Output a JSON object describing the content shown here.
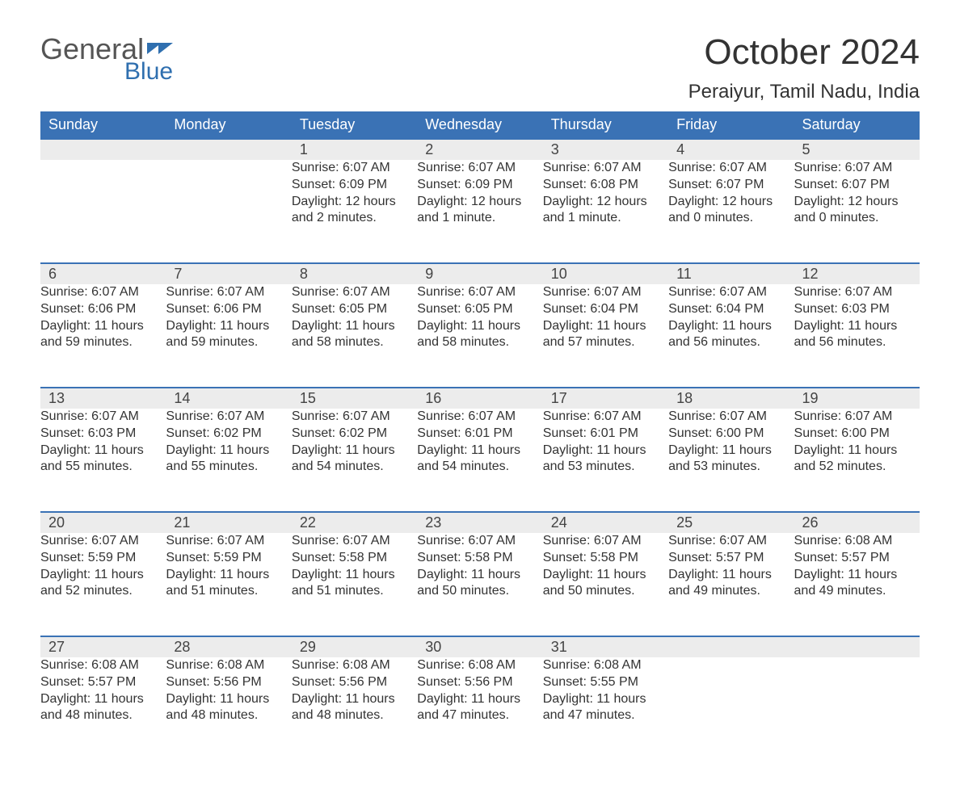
{
  "brand": {
    "part1": "General",
    "part2": "Blue"
  },
  "title": "October 2024",
  "location": "Peraiyur, Tamil Nadu, India",
  "columns": [
    "Sunday",
    "Monday",
    "Tuesday",
    "Wednesday",
    "Thursday",
    "Friday",
    "Saturday"
  ],
  "colors": {
    "header_bg": "#3a72b5",
    "header_text": "#ffffff",
    "daynum_bg": "#ececec",
    "daynum_border": "#3a72b5",
    "body_text": "#333333",
    "brand_gray": "#555555",
    "brand_blue": "#2f6faf",
    "background": "#ffffff"
  },
  "typography": {
    "month_title_fontsize": 44,
    "location_fontsize": 24,
    "header_fontsize": 18,
    "daynum_fontsize": 18,
    "body_fontsize": 16
  },
  "layout": {
    "type": "calendar-table",
    "cols": 7,
    "rows": 5,
    "first_day_col_index": 2
  },
  "days": [
    {
      "n": "1",
      "sunrise": "6:07 AM",
      "sunset": "6:09 PM",
      "daylight": "12 hours and 2 minutes."
    },
    {
      "n": "2",
      "sunrise": "6:07 AM",
      "sunset": "6:09 PM",
      "daylight": "12 hours and 1 minute."
    },
    {
      "n": "3",
      "sunrise": "6:07 AM",
      "sunset": "6:08 PM",
      "daylight": "12 hours and 1 minute."
    },
    {
      "n": "4",
      "sunrise": "6:07 AM",
      "sunset": "6:07 PM",
      "daylight": "12 hours and 0 minutes."
    },
    {
      "n": "5",
      "sunrise": "6:07 AM",
      "sunset": "6:07 PM",
      "daylight": "12 hours and 0 minutes."
    },
    {
      "n": "6",
      "sunrise": "6:07 AM",
      "sunset": "6:06 PM",
      "daylight": "11 hours and 59 minutes."
    },
    {
      "n": "7",
      "sunrise": "6:07 AM",
      "sunset": "6:06 PM",
      "daylight": "11 hours and 59 minutes."
    },
    {
      "n": "8",
      "sunrise": "6:07 AM",
      "sunset": "6:05 PM",
      "daylight": "11 hours and 58 minutes."
    },
    {
      "n": "9",
      "sunrise": "6:07 AM",
      "sunset": "6:05 PM",
      "daylight": "11 hours and 58 minutes."
    },
    {
      "n": "10",
      "sunrise": "6:07 AM",
      "sunset": "6:04 PM",
      "daylight": "11 hours and 57 minutes."
    },
    {
      "n": "11",
      "sunrise": "6:07 AM",
      "sunset": "6:04 PM",
      "daylight": "11 hours and 56 minutes."
    },
    {
      "n": "12",
      "sunrise": "6:07 AM",
      "sunset": "6:03 PM",
      "daylight": "11 hours and 56 minutes."
    },
    {
      "n": "13",
      "sunrise": "6:07 AM",
      "sunset": "6:03 PM",
      "daylight": "11 hours and 55 minutes."
    },
    {
      "n": "14",
      "sunrise": "6:07 AM",
      "sunset": "6:02 PM",
      "daylight": "11 hours and 55 minutes."
    },
    {
      "n": "15",
      "sunrise": "6:07 AM",
      "sunset": "6:02 PM",
      "daylight": "11 hours and 54 minutes."
    },
    {
      "n": "16",
      "sunrise": "6:07 AM",
      "sunset": "6:01 PM",
      "daylight": "11 hours and 54 minutes."
    },
    {
      "n": "17",
      "sunrise": "6:07 AM",
      "sunset": "6:01 PM",
      "daylight": "11 hours and 53 minutes."
    },
    {
      "n": "18",
      "sunrise": "6:07 AM",
      "sunset": "6:00 PM",
      "daylight": "11 hours and 53 minutes."
    },
    {
      "n": "19",
      "sunrise": "6:07 AM",
      "sunset": "6:00 PM",
      "daylight": "11 hours and 52 minutes."
    },
    {
      "n": "20",
      "sunrise": "6:07 AM",
      "sunset": "5:59 PM",
      "daylight": "11 hours and 52 minutes."
    },
    {
      "n": "21",
      "sunrise": "6:07 AM",
      "sunset": "5:59 PM",
      "daylight": "11 hours and 51 minutes."
    },
    {
      "n": "22",
      "sunrise": "6:07 AM",
      "sunset": "5:58 PM",
      "daylight": "11 hours and 51 minutes."
    },
    {
      "n": "23",
      "sunrise": "6:07 AM",
      "sunset": "5:58 PM",
      "daylight": "11 hours and 50 minutes."
    },
    {
      "n": "24",
      "sunrise": "6:07 AM",
      "sunset": "5:58 PM",
      "daylight": "11 hours and 50 minutes."
    },
    {
      "n": "25",
      "sunrise": "6:07 AM",
      "sunset": "5:57 PM",
      "daylight": "11 hours and 49 minutes."
    },
    {
      "n": "26",
      "sunrise": "6:08 AM",
      "sunset": "5:57 PM",
      "daylight": "11 hours and 49 minutes."
    },
    {
      "n": "27",
      "sunrise": "6:08 AM",
      "sunset": "5:57 PM",
      "daylight": "11 hours and 48 minutes."
    },
    {
      "n": "28",
      "sunrise": "6:08 AM",
      "sunset": "5:56 PM",
      "daylight": "11 hours and 48 minutes."
    },
    {
      "n": "29",
      "sunrise": "6:08 AM",
      "sunset": "5:56 PM",
      "daylight": "11 hours and 48 minutes."
    },
    {
      "n": "30",
      "sunrise": "6:08 AM",
      "sunset": "5:56 PM",
      "daylight": "11 hours and 47 minutes."
    },
    {
      "n": "31",
      "sunrise": "6:08 AM",
      "sunset": "5:55 PM",
      "daylight": "11 hours and 47 minutes."
    }
  ],
  "labels": {
    "sunrise": "Sunrise:",
    "sunset": "Sunset:",
    "daylight": "Daylight:"
  }
}
